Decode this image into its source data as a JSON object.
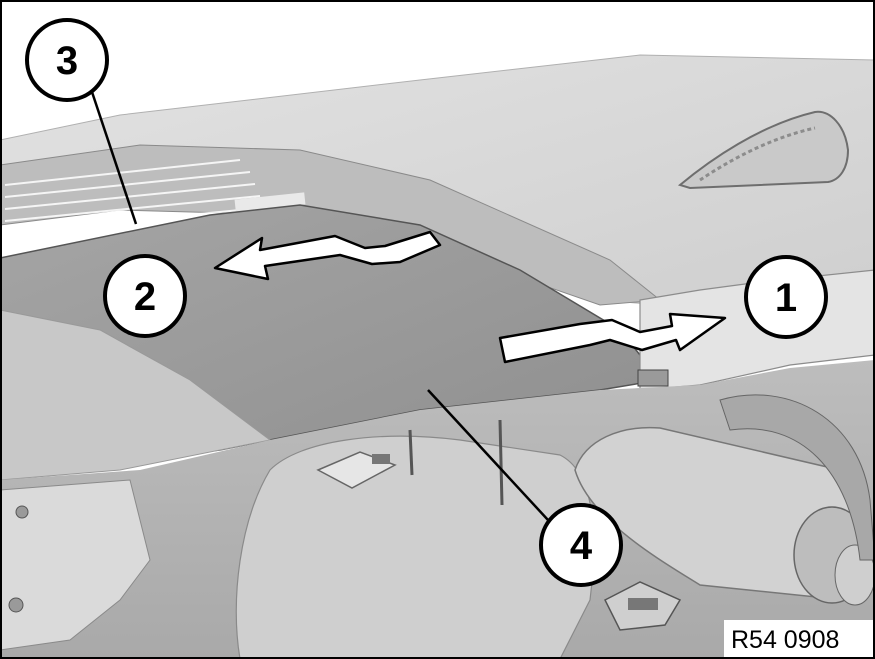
{
  "figure": {
    "reference_code": "R54 0908"
  },
  "callouts": [
    {
      "id": "callout-1",
      "label": "1"
    },
    {
      "id": "callout-2",
      "label": "2"
    },
    {
      "id": "callout-3",
      "label": "3"
    },
    {
      "id": "callout-4",
      "label": "4"
    }
  ],
  "colors": {
    "background": "#ffffff",
    "roof_light": "#d8d8d8",
    "roof_mid": "#c4c4c4",
    "headliner_panel": "#9a9a9a",
    "dark_interior": "#7a7a7a",
    "outline": "#000000"
  }
}
